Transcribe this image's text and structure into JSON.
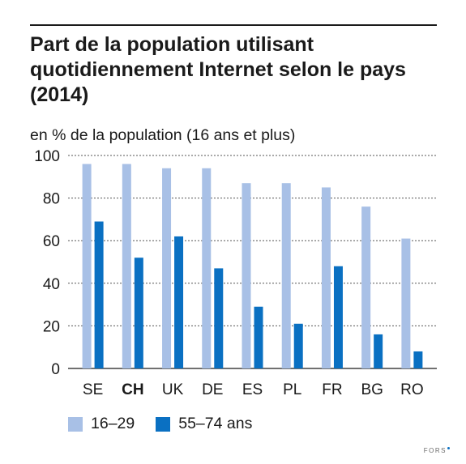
{
  "chart_data": {
    "type": "bar",
    "title": "Part de la population utilisant quotidiennement Internet selon le pays (2014)",
    "subtitle": "en % de la population (16 ans et plus)",
    "categories": [
      "SE",
      "CH",
      "UK",
      "DE",
      "ES",
      "PL",
      "FR",
      "BG",
      "RO"
    ],
    "highlight_category": "CH",
    "series": [
      {
        "name": "16–29",
        "color": "#a8c0e6",
        "values": [
          96,
          96,
          94,
          94,
          87,
          87,
          85,
          76,
          61
        ]
      },
      {
        "name": "55–74 ans",
        "color": "#0a70c2",
        "values": [
          69,
          52,
          62,
          47,
          29,
          21,
          48,
          16,
          8
        ]
      }
    ],
    "ylim": [
      0,
      100
    ],
    "yticks": [
      0,
      20,
      40,
      60,
      80,
      100
    ],
    "grid": "dotted horizontal",
    "legend_position": "bottom-left"
  },
  "logo": {
    "text": "FORS"
  }
}
